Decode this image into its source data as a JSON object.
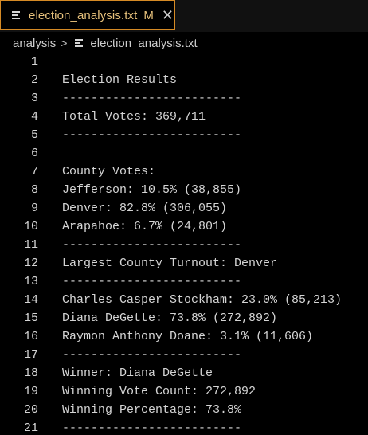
{
  "tab": {
    "title": "election_analysis.txt",
    "modified": "M",
    "close": "✕"
  },
  "breadcrumb": {
    "folder": "analysis",
    "separator": ">",
    "file": "election_analysis.txt"
  },
  "editor": {
    "lines": [
      {
        "n": "1",
        "text": ""
      },
      {
        "n": "2",
        "text": "Election Results"
      },
      {
        "n": "3",
        "text": "-------------------------"
      },
      {
        "n": "4",
        "text": "Total Votes: 369,711"
      },
      {
        "n": "5",
        "text": "-------------------------"
      },
      {
        "n": "6",
        "text": ""
      },
      {
        "n": "7",
        "text": "County Votes:"
      },
      {
        "n": "8",
        "text": "Jefferson: 10.5% (38,855)"
      },
      {
        "n": "9",
        "text": "Denver: 82.8% (306,055)"
      },
      {
        "n": "10",
        "text": "Arapahoe: 6.7% (24,801)"
      },
      {
        "n": "11",
        "text": "-------------------------"
      },
      {
        "n": "12",
        "text": "Largest County Turnout: Denver"
      },
      {
        "n": "13",
        "text": "-------------------------"
      },
      {
        "n": "14",
        "text": "Charles Casper Stockham: 23.0% (85,213)"
      },
      {
        "n": "15",
        "text": "Diana DeGette: 73.8% (272,892)"
      },
      {
        "n": "16",
        "text": "Raymon Anthony Doane: 3.1% (11,606)"
      },
      {
        "n": "17",
        "text": "-------------------------"
      },
      {
        "n": "18",
        "text": "Winner: Diana DeGette"
      },
      {
        "n": "19",
        "text": "Winning Vote Count: 272,892"
      },
      {
        "n": "20",
        "text": "Winning Percentage: 73.8%"
      },
      {
        "n": "21",
        "text": "-------------------------"
      }
    ]
  },
  "colors": {
    "background": "#000000",
    "tab_border": "#d58a25",
    "tab_text": "#e6c07b",
    "text": "#d4d4d4"
  }
}
